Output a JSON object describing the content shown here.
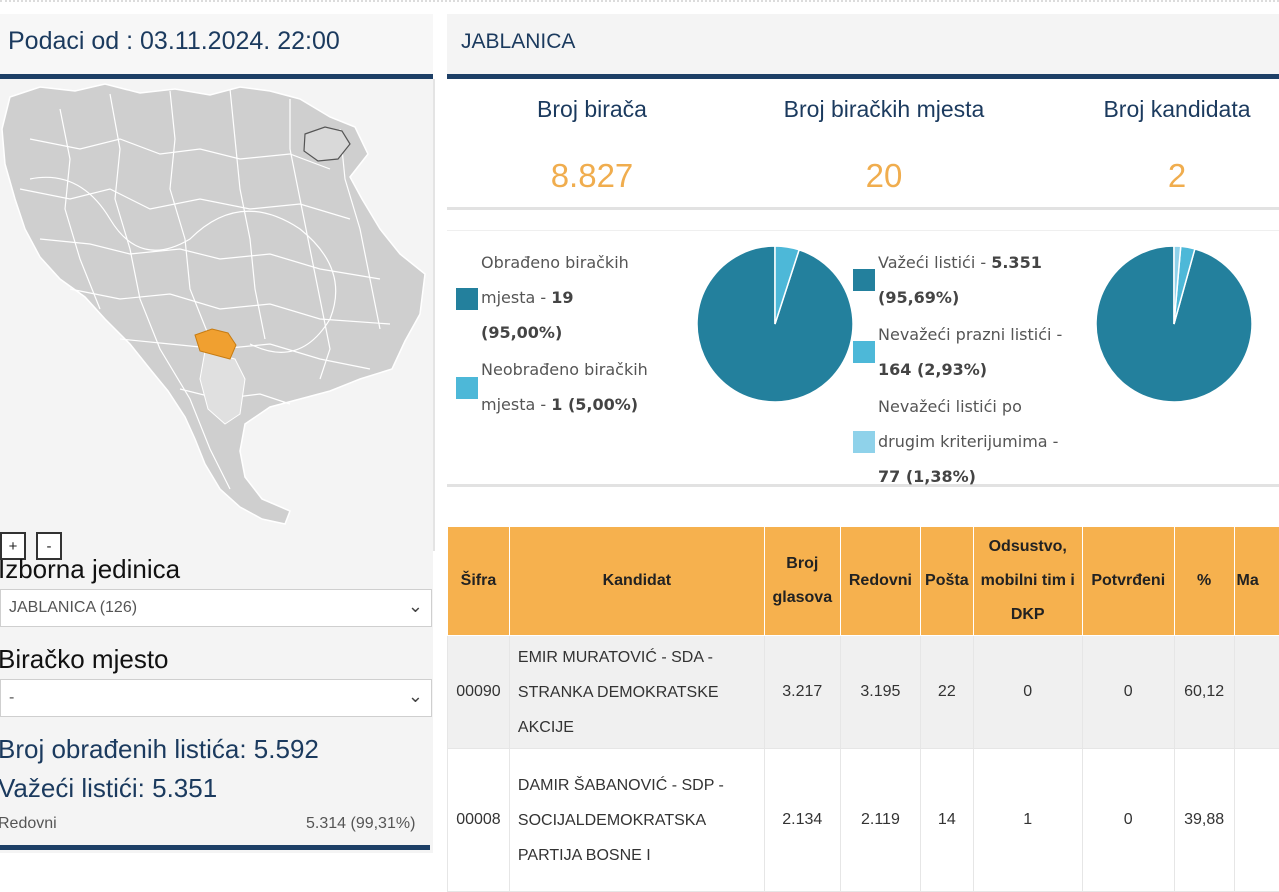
{
  "header": {
    "data_as_of": "Podaci od : 03.11.2024. 22:00"
  },
  "municipality": "JABLANICA",
  "map": {
    "zoom_in": "+",
    "zoom_out": "-",
    "highlight_color": "#f0a030"
  },
  "filters": {
    "unit_label": "Izborna jedinica",
    "unit_value": "JABLANICA (126)",
    "station_label": "Biračko mjesto",
    "station_value": "-"
  },
  "left_stats": {
    "processed": "Broj obrađenih listića: 5.592",
    "valid": "Važeći listići: 5.351",
    "regular_label": "Redovni",
    "regular_value": "5.314 (99,31%)"
  },
  "kpis": [
    {
      "title": "Broj birača",
      "value": "8.827"
    },
    {
      "title": "Broj biračkih mjesta",
      "value": "20"
    },
    {
      "title": "Broj kandidata",
      "value": "2"
    }
  ],
  "stations_legend": {
    "processed": {
      "line1": "Obrađeno biračkih",
      "line2": "mjesta - ",
      "bold2": "19",
      "line3": "(95,00%)"
    },
    "unprocessed": {
      "line1": "Neobrađeno biračkih",
      "line2": "mjesta - ",
      "bold2": "1 (5,00%)"
    }
  },
  "ballots_legend": {
    "valid": {
      "line1": "Važeći listići - ",
      "bold1": "5.351",
      "line2": "(95,69%)"
    },
    "blank": {
      "line1": "Nevažeći prazni listići -",
      "line2": "164 (2,93%)"
    },
    "other": {
      "line1": "Nevažeći listići po",
      "line2": "drugim kriterijumima -",
      "line3": "77 (1,38%)"
    }
  },
  "colors": {
    "dark_teal": "#23809d",
    "light_blue": "#4db8d8",
    "pale_blue": "#8fd2ea",
    "orange": "#f6b14e",
    "navy": "#1d3f66"
  },
  "chart_data": [
    {
      "type": "pie",
      "categories": [
        "Obrađeno biračkih mjesta",
        "Neobrađeno biračkih mjesta"
      ],
      "values": [
        19,
        1
      ]
    },
    {
      "type": "pie",
      "categories": [
        "Važeći listići",
        "Nevažeći prazni listići",
        "Nevažeći listići po drugim kriterijumima"
      ],
      "values": [
        5351,
        164,
        77
      ]
    }
  ],
  "table": {
    "headers": [
      "Šifra",
      "Kandidat",
      "Broj glasova",
      "Redovni",
      "Pošta",
      "Odsustvo, mobilni tim i DKP",
      "Potvrđeni",
      "%",
      "Ma"
    ],
    "rows": [
      {
        "code": "00090",
        "candidate": [
          "EMIR MURATOVIĆ - SDA -",
          "STRANKA DEMOKRATSKE",
          "AKCIJE"
        ],
        "votes": "3.217",
        "regular": "3.195",
        "post": "22",
        "absent": "0",
        "confirmed": "0",
        "pct": "60,12"
      },
      {
        "code": "00008",
        "candidate": [
          "DAMIR ŠABANOVIĆ - SDP -",
          "SOCIJALDEMOKRATSKA",
          "PARTIJA BOSNE I"
        ],
        "votes": "2.134",
        "regular": "2.119",
        "post": "14",
        "absent": "1",
        "confirmed": "0",
        "pct": "39,88"
      }
    ]
  }
}
